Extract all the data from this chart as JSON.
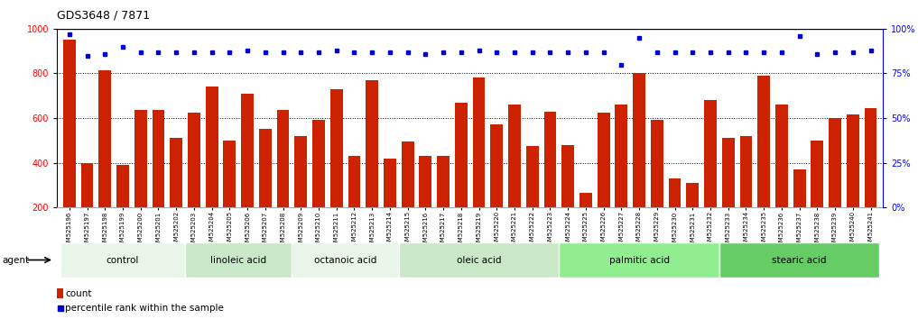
{
  "title": "GDS3648 / 7871",
  "samples": [
    "GSM525196",
    "GSM525197",
    "GSM525198",
    "GSM525199",
    "GSM525200",
    "GSM525201",
    "GSM525202",
    "GSM525203",
    "GSM525204",
    "GSM525205",
    "GSM525206",
    "GSM525207",
    "GSM525208",
    "GSM525209",
    "GSM525210",
    "GSM525211",
    "GSM525212",
    "GSM525213",
    "GSM525214",
    "GSM525215",
    "GSM525216",
    "GSM525217",
    "GSM525218",
    "GSM525219",
    "GSM525220",
    "GSM525221",
    "GSM525222",
    "GSM525223",
    "GSM525224",
    "GSM525225",
    "GSM525226",
    "GSM525227",
    "GSM525228",
    "GSM525229",
    "GSM525230",
    "GSM525231",
    "GSM525232",
    "GSM525233",
    "GSM525234",
    "GSM525235",
    "GSM525236",
    "GSM525237",
    "GSM525238",
    "GSM525239",
    "GSM525240",
    "GSM525241"
  ],
  "counts": [
    950,
    400,
    815,
    390,
    635,
    635,
    510,
    625,
    740,
    500,
    710,
    550,
    635,
    520,
    590,
    730,
    430,
    770,
    420,
    495,
    430,
    430,
    670,
    780,
    570,
    660,
    475,
    630,
    480,
    265,
    625,
    660,
    800,
    590,
    330,
    310,
    680,
    510,
    520,
    790,
    660,
    370,
    500,
    600,
    615,
    645
  ],
  "percentile_ranks": [
    97,
    85,
    86,
    90,
    87,
    87,
    87,
    87,
    87,
    87,
    88,
    87,
    87,
    87,
    87,
    88,
    87,
    87,
    87,
    87,
    86,
    87,
    87,
    88,
    87,
    87,
    87,
    87,
    87,
    87,
    87,
    80,
    95,
    87,
    87,
    87,
    87,
    87,
    87,
    87,
    87,
    96,
    86,
    87,
    87,
    88
  ],
  "groups": [
    {
      "label": "control",
      "start": 0,
      "end": 7
    },
    {
      "label": "linoleic acid",
      "start": 7,
      "end": 13
    },
    {
      "label": "octanoic acid",
      "start": 13,
      "end": 19
    },
    {
      "label": "oleic acid",
      "start": 19,
      "end": 28
    },
    {
      "label": "palmitic acid",
      "start": 28,
      "end": 37
    },
    {
      "label": "stearic acid",
      "start": 37,
      "end": 46
    }
  ],
  "bar_color": "#cc2200",
  "dot_color": "#0000cc",
  "group_colors": [
    "#e8f5e9",
    "#c8e6c9",
    "#e8f5e9",
    "#c8e6c9",
    "#90ee90",
    "#66bb6a"
  ],
  "ylim_left": [
    200,
    1000
  ],
  "ylim_right": [
    0,
    100
  ],
  "yticks_left": [
    200,
    400,
    600,
    800,
    1000
  ],
  "yticks_right": [
    0,
    25,
    50,
    75,
    100
  ],
  "grid_values": [
    400,
    600,
    800
  ],
  "agent_label": "agent"
}
